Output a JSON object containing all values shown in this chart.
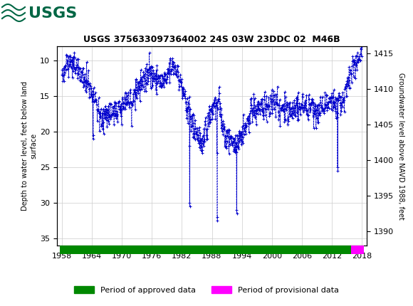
{
  "title": "USGS 375633097364002 24S 03W 23DDC 02  M46B",
  "header_color": "#006644",
  "ylabel_left": "Depth to water level, feet below land\nsurface",
  "ylabel_right": "Groundwater level above NAVD 1988, feet",
  "xlim": [
    1957,
    2019
  ],
  "ylim_left": [
    36,
    8
  ],
  "ylim_right": [
    1388,
    1416
  ],
  "xticks": [
    1958,
    1964,
    1970,
    1976,
    1982,
    1988,
    1994,
    2000,
    2006,
    2012,
    2018
  ],
  "yticks_left": [
    10,
    15,
    20,
    25,
    30,
    35
  ],
  "yticks_right": [
    1390,
    1395,
    1400,
    1405,
    1410,
    1415
  ],
  "grid_color": "#cccccc",
  "data_color": "#0000cc",
  "approved_color": "#008800",
  "provisional_color": "#ff00ff",
  "legend_approved": "Period of approved data",
  "legend_provisional": "Period of provisional data",
  "bar_approved_xstart": 1957.5,
  "bar_approved_xend": 2015.8,
  "bar_provisional_xstart": 2015.8,
  "bar_provisional_xend": 2018.5,
  "background_color": "#ffffff",
  "font_family": "DejaVu Sans Mono"
}
